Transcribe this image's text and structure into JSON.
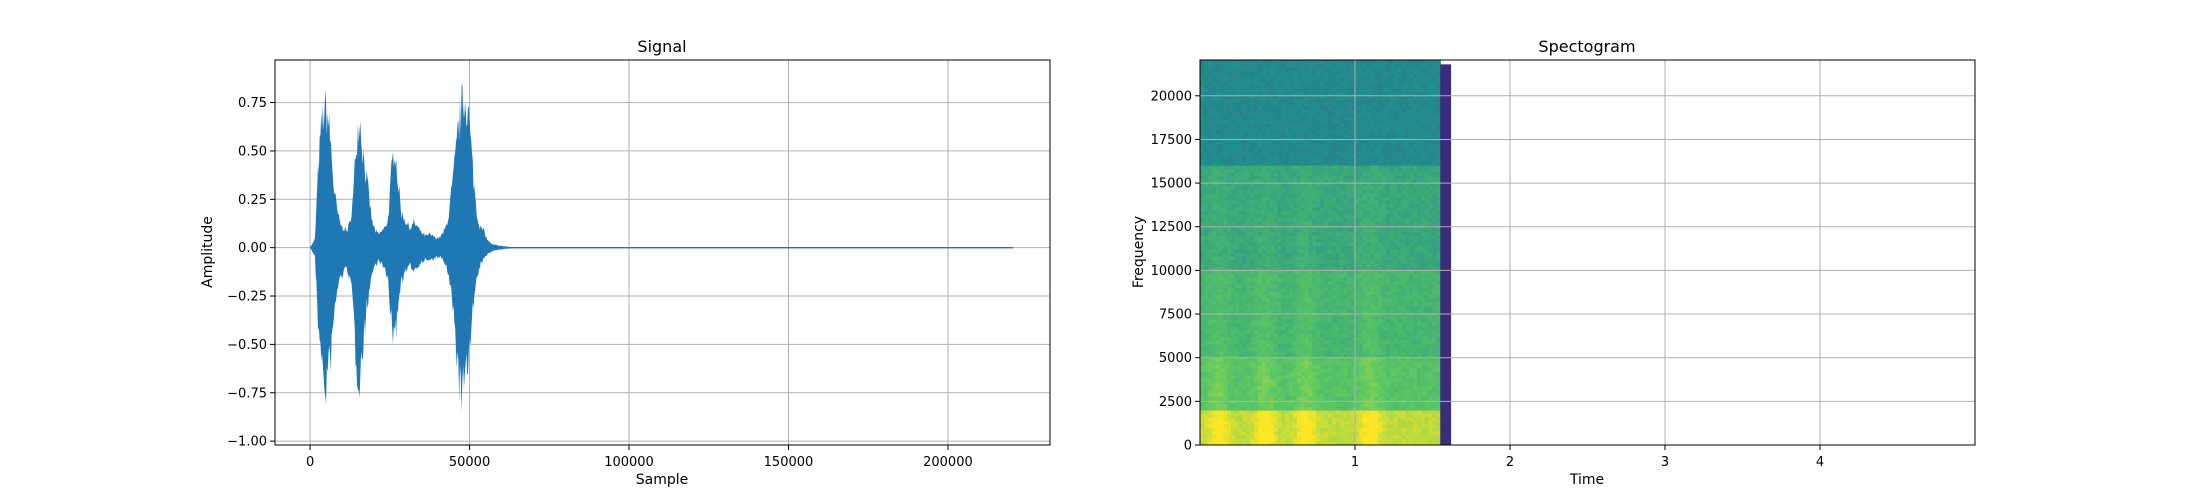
{
  "chart_data": [
    {
      "type": "line",
      "title": "Signal",
      "xlabel": "Sample",
      "ylabel": "Amplitude",
      "xlim": [
        -11000,
        232000
      ],
      "ylim": [
        -1.02,
        0.97
      ],
      "grid": true,
      "line_color": "#1f77b4",
      "xticks": [
        0,
        50000,
        100000,
        150000,
        200000
      ],
      "xtick_labels": [
        "0",
        "50000",
        "100000",
        "150000",
        "200000"
      ],
      "yticks": [
        -1.0,
        -0.75,
        -0.5,
        -0.25,
        0.0,
        0.25,
        0.5,
        0.75
      ],
      "ytick_labels": [
        "−1.00",
        "−0.75",
        "−0.50",
        "−0.25",
        "0.00",
        "0.25",
        "0.50",
        "0.75"
      ],
      "series": [
        {
          "x_range": [
            0,
            220500
          ],
          "envelope": {
            "x": [
              0,
              1500,
              2500,
              3500,
              4500,
              5500,
              6500,
              7500,
              8500,
              9500,
              10500,
              11500,
              12500,
              13500,
              14500,
              15500,
              16500,
              17500,
              18500,
              19500,
              20500,
              21500,
              22500,
              23500,
              24500,
              25500,
              26500,
              27500,
              28500,
              29500,
              30500,
              31500,
              32500,
              33500,
              34500,
              35500,
              36500,
              37500,
              38500,
              39500,
              40500,
              41500,
              42500,
              43500,
              44500,
              45500,
              46500,
              47500,
              48500,
              49500,
              50500,
              51500,
              52500,
              53500,
              54500,
              55500,
              57000,
              60000,
              65000,
              70000,
              220500
            ],
            "max": [
              0.0,
              0.05,
              0.45,
              0.72,
              0.84,
              0.8,
              0.62,
              0.35,
              0.22,
              0.14,
              0.12,
              0.1,
              0.15,
              0.3,
              0.65,
              0.8,
              0.6,
              0.45,
              0.3,
              0.15,
              0.1,
              0.08,
              0.1,
              0.12,
              0.18,
              0.45,
              0.63,
              0.42,
              0.22,
              0.18,
              0.14,
              0.12,
              0.15,
              0.13,
              0.1,
              0.08,
              0.07,
              0.08,
              0.07,
              0.06,
              0.06,
              0.08,
              0.12,
              0.2,
              0.36,
              0.52,
              0.72,
              0.85,
              0.9,
              0.86,
              0.6,
              0.36,
              0.18,
              0.12,
              0.1,
              0.05,
              0.02,
              0.01,
              0.0,
              0.0,
              0.0
            ],
            "min": [
              0.0,
              -0.05,
              -0.45,
              -0.6,
              -0.93,
              -0.75,
              -0.66,
              -0.42,
              -0.25,
              -0.18,
              -0.15,
              -0.12,
              -0.18,
              -0.35,
              -0.72,
              -0.78,
              -0.62,
              -0.4,
              -0.26,
              -0.15,
              -0.1,
              -0.08,
              -0.1,
              -0.14,
              -0.2,
              -0.45,
              -0.58,
              -0.38,
              -0.2,
              -0.16,
              -0.13,
              -0.11,
              -0.13,
              -0.12,
              -0.09,
              -0.08,
              -0.07,
              -0.08,
              -0.07,
              -0.06,
              -0.06,
              -0.07,
              -0.1,
              -0.18,
              -0.32,
              -0.5,
              -0.78,
              -0.89,
              -0.82,
              -0.7,
              -0.45,
              -0.3,
              -0.18,
              -0.1,
              -0.07,
              -0.04,
              -0.02,
              -0.01,
              0.0,
              0.0,
              0.0
            ]
          }
        }
      ]
    },
    {
      "type": "heatmap",
      "title": "Spectogram",
      "xlabel": "Time",
      "ylabel": "Frequency",
      "xlim": [
        0.0,
        5.0
      ],
      "ylim": [
        0,
        22050
      ],
      "grid": true,
      "colormap": "viridis",
      "xticks": [
        1,
        2,
        3,
        4
      ],
      "xtick_labels": [
        "1",
        "2",
        "3",
        "4"
      ],
      "yticks": [
        0,
        2500,
        5000,
        7500,
        10000,
        12500,
        15000,
        17500,
        20000
      ],
      "ytick_labels": [
        "0",
        "2500",
        "5000",
        "7500",
        "10000",
        "12500",
        "15000",
        "17500",
        "20000"
      ],
      "data_extent_time": [
        0.0,
        1.55
      ],
      "edge_column": {
        "time": [
          1.55,
          1.62
        ],
        "freq_top": 21800,
        "color": "#3b2d79"
      },
      "speech_time_centers": [
        0.12,
        0.42,
        0.68,
        1.1
      ],
      "freq_bands": [
        {
          "from": 0,
          "to": 2000,
          "level": 0.9
        },
        {
          "from": 2000,
          "to": 5000,
          "level": 0.72
        },
        {
          "from": 5000,
          "to": 10000,
          "level": 0.66
        },
        {
          "from": 10000,
          "to": 16000,
          "level": 0.6
        },
        {
          "from": 16000,
          "to": 22050,
          "level": 0.47
        }
      ]
    }
  ]
}
